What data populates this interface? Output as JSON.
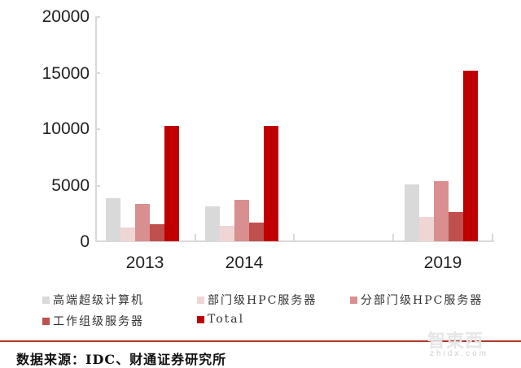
{
  "chart_data": {
    "type": "bar",
    "title": "",
    "xlabel": "",
    "ylabel": "",
    "ylim": [
      0,
      20000
    ],
    "yticks": [
      0,
      5000,
      10000,
      15000,
      20000
    ],
    "grid": false,
    "legend_position": "bottom",
    "categories": [
      "2013",
      "2014",
      "",
      "2019"
    ],
    "series": [
      {
        "name": "高端超级计算机",
        "color": "#d9d9d9",
        "values": [
          3850,
          3100,
          null,
          5050
        ]
      },
      {
        "name": "部门级HPC服务器",
        "color": "#f0d5d5",
        "values": [
          1250,
          1400,
          null,
          2150
        ]
      },
      {
        "name": "分部门级HPC服务器",
        "color": "#d98f8f",
        "values": [
          3300,
          3700,
          null,
          5350
        ]
      },
      {
        "name": "工作组级服务器",
        "color": "#c0504d",
        "values": [
          1550,
          1650,
          null,
          2600
        ]
      },
      {
        "name": "Total",
        "color": "#c00000",
        "values": [
          10250,
          10250,
          null,
          15150
        ]
      }
    ]
  },
  "yaxis": {
    "labels": [
      "20000",
      "15000",
      "10000",
      "5000",
      "0"
    ]
  },
  "xaxis": {
    "labels": [
      "2013",
      "2014",
      "",
      "2019"
    ]
  },
  "legend": {
    "items": [
      {
        "label": "高端超级计算机",
        "color": "#d9d9d9"
      },
      {
        "label": "部门级HPC服务器",
        "color": "#f0d5d5"
      },
      {
        "label": "分部门级HPC服务器",
        "color": "#d98f8f"
      },
      {
        "label": "工作组级服务器",
        "color": "#c0504d"
      },
      {
        "label": "Total",
        "color": "#c00000"
      }
    ]
  },
  "footer": {
    "source": "数据来源：IDC、财通证券研究所"
  },
  "watermark": {
    "logo": "智東西",
    "url": "zhidx.com"
  }
}
